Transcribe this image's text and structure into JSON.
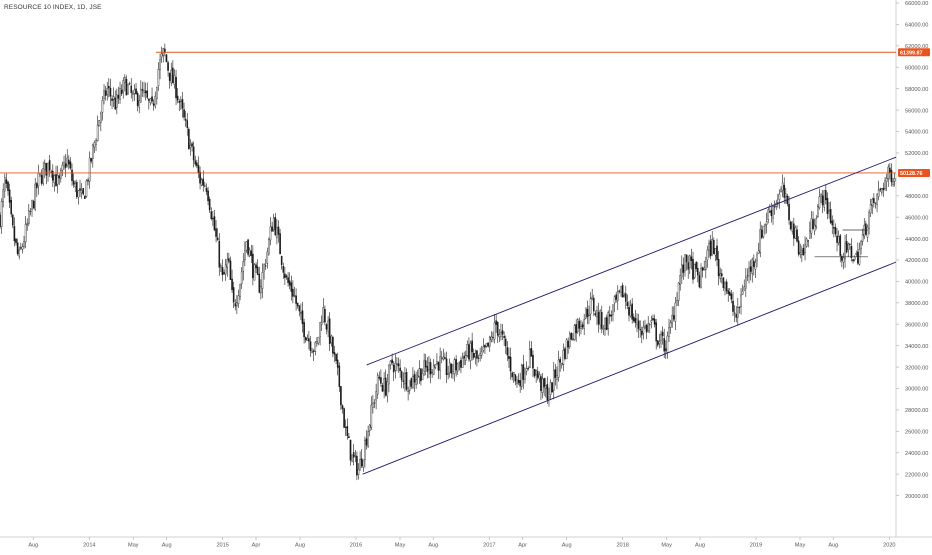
{
  "header": {
    "symbol_title": "RESOURCE 10 INDEX, 1D, JSE"
  },
  "colors": {
    "candle": "#1a1a1a",
    "resistance": "#e9541e",
    "channel": "#1f1a6b",
    "axis_text": "#555555",
    "price_label_bg": "#e9541e",
    "price_label_text": "#ffffff"
  },
  "chart_data": {
    "type": "candlestick",
    "title": "RESOURCE 10 INDEX, 1D, JSE",
    "xlabel": "",
    "ylabel": "",
    "ylim": [
      18000,
      66000
    ],
    "grid": false,
    "price_axis_position": "right",
    "y_ticks": [
      "66000.00",
      "64000.00",
      "62000.00",
      "60000.00",
      "58000.00",
      "56000.00",
      "54000.00",
      "52000.00",
      "48000.00",
      "46000.00",
      "44000.00",
      "42000.00",
      "40000.00",
      "38000.00",
      "36000.00",
      "34000.00",
      "32000.00",
      "30000.00",
      "28000.00",
      "26000.00",
      "24000.00",
      "22000.00",
      "20000.00"
    ],
    "x_ticks": [
      {
        "label": "Aug",
        "t": 2013.58
      },
      {
        "label": "2014",
        "t": 2014.0
      },
      {
        "label": "May",
        "t": 2014.33
      },
      {
        "label": "Aug",
        "t": 2014.58
      },
      {
        "label": "2015",
        "t": 2015.0
      },
      {
        "label": "Apr",
        "t": 2015.25
      },
      {
        "label": "Aug",
        "t": 2015.58
      },
      {
        "label": "2016",
        "t": 2016.0
      },
      {
        "label": "May",
        "t": 2016.33
      },
      {
        "label": "Aug",
        "t": 2016.58
      },
      {
        "label": "2017",
        "t": 2017.0
      },
      {
        "label": "Apr",
        "t": 2017.25
      },
      {
        "label": "Aug",
        "t": 2017.58
      },
      {
        "label": "2018",
        "t": 2018.0
      },
      {
        "label": "May",
        "t": 2018.33
      },
      {
        "label": "Aug",
        "t": 2018.58
      },
      {
        "label": "2019",
        "t": 2019.0
      },
      {
        "label": "May",
        "t": 2019.33
      },
      {
        "label": "Aug",
        "t": 2019.58
      },
      {
        "label": "2020",
        "t": 2020.0
      }
    ],
    "x_range": [
      2013.33,
      2020.05
    ],
    "price_path": [
      [
        2013.33,
        46000
      ],
      [
        2013.37,
        49500
      ],
      [
        2013.42,
        45000
      ],
      [
        2013.47,
        42000
      ],
      [
        2013.55,
        46000
      ],
      [
        2013.62,
        49500
      ],
      [
        2013.7,
        51000
      ],
      [
        2013.77,
        49000
      ],
      [
        2013.83,
        51500
      ],
      [
        2013.88,
        49000
      ],
      [
        2013.95,
        47500
      ],
      [
        2014.0,
        50500
      ],
      [
        2014.07,
        55000
      ],
      [
        2014.13,
        58000
      ],
      [
        2014.2,
        56500
      ],
      [
        2014.27,
        58500
      ],
      [
        2014.33,
        57000
      ],
      [
        2014.4,
        57500
      ],
      [
        2014.47,
        56000
      ],
      [
        2014.52,
        60000
      ],
      [
        2014.56,
        61400
      ],
      [
        2014.6,
        59500
      ],
      [
        2014.65,
        58000
      ],
      [
        2014.72,
        54500
      ],
      [
        2014.78,
        51500
      ],
      [
        2014.83,
        49500
      ],
      [
        2014.88,
        49000
      ],
      [
        2014.95,
        44000
      ],
      [
        2015.0,
        40000
      ],
      [
        2015.04,
        42000
      ],
      [
        2015.08,
        37500
      ],
      [
        2015.13,
        40000
      ],
      [
        2015.18,
        44000
      ],
      [
        2015.23,
        41000
      ],
      [
        2015.28,
        39500
      ],
      [
        2015.33,
        42500
      ],
      [
        2015.38,
        46000
      ],
      [
        2015.43,
        43000
      ],
      [
        2015.48,
        40000
      ],
      [
        2015.53,
        39000
      ],
      [
        2015.58,
        36500
      ],
      [
        2015.65,
        34500
      ],
      [
        2015.7,
        33500
      ],
      [
        2015.75,
        37500
      ],
      [
        2015.8,
        35000
      ],
      [
        2015.85,
        32000
      ],
      [
        2015.88,
        30000
      ],
      [
        2015.92,
        26000
      ],
      [
        2015.97,
        23500
      ],
      [
        2016.02,
        22400
      ],
      [
        2016.07,
        25000
      ],
      [
        2016.12,
        28000
      ],
      [
        2016.17,
        31000
      ],
      [
        2016.22,
        30000
      ],
      [
        2016.27,
        32500
      ],
      [
        2016.33,
        31500
      ],
      [
        2016.4,
        30500
      ],
      [
        2016.47,
        31500
      ],
      [
        2016.55,
        32000
      ],
      [
        2016.62,
        32500
      ],
      [
        2016.7,
        31500
      ],
      [
        2016.78,
        32500
      ],
      [
        2016.85,
        33500
      ],
      [
        2016.92,
        32500
      ],
      [
        2017.0,
        34000
      ],
      [
        2017.05,
        36000
      ],
      [
        2017.1,
        34500
      ],
      [
        2017.15,
        32500
      ],
      [
        2017.2,
        30500
      ],
      [
        2017.25,
        31500
      ],
      [
        2017.3,
        33000
      ],
      [
        2017.35,
        31500
      ],
      [
        2017.4,
        30000
      ],
      [
        2017.45,
        29500
      ],
      [
        2017.5,
        31500
      ],
      [
        2017.58,
        34000
      ],
      [
        2017.63,
        35500
      ],
      [
        2017.7,
        36500
      ],
      [
        2017.77,
        38000
      ],
      [
        2017.82,
        36500
      ],
      [
        2017.87,
        36000
      ],
      [
        2017.93,
        37500
      ],
      [
        2018.0,
        39000
      ],
      [
        2018.05,
        37500
      ],
      [
        2018.1,
        36000
      ],
      [
        2018.15,
        35500
      ],
      [
        2018.22,
        36000
      ],
      [
        2018.27,
        34500
      ],
      [
        2018.33,
        34000
      ],
      [
        2018.38,
        37000
      ],
      [
        2018.43,
        40500
      ],
      [
        2018.48,
        42000
      ],
      [
        2018.53,
        41000
      ],
      [
        2018.58,
        40000
      ],
      [
        2018.63,
        42500
      ],
      [
        2018.68,
        43500
      ],
      [
        2018.72,
        41000
      ],
      [
        2018.77,
        40000
      ],
      [
        2018.82,
        37500
      ],
      [
        2018.86,
        36500
      ],
      [
        2018.9,
        39500
      ],
      [
        2018.95,
        41000
      ],
      [
        2019.0,
        42500
      ],
      [
        2019.05,
        45000
      ],
      [
        2019.1,
        46500
      ],
      [
        2019.15,
        47500
      ],
      [
        2019.2,
        48500
      ],
      [
        2019.25,
        46000
      ],
      [
        2019.3,
        44000
      ],
      [
        2019.35,
        42500
      ],
      [
        2019.4,
        44500
      ],
      [
        2019.45,
        46500
      ],
      [
        2019.5,
        48000
      ],
      [
        2019.55,
        46500
      ],
      [
        2019.6,
        44000
      ],
      [
        2019.65,
        42500
      ],
      [
        2019.7,
        43000
      ],
      [
        2019.75,
        42000
      ],
      [
        2019.8,
        44000
      ],
      [
        2019.85,
        46500
      ],
      [
        2019.9,
        47500
      ],
      [
        2019.95,
        49000
      ],
      [
        2020.0,
        50000
      ],
      [
        2020.04,
        50100
      ]
    ],
    "resistance_levels": [
      {
        "price": 61399.87,
        "label": "61399.87",
        "t_start": 2014.5
      },
      {
        "price": 50128.76,
        "label": "50128.76",
        "t_start": 2013.33
      }
    ],
    "channel": {
      "upper": [
        [
          2016.08,
          32200
        ],
        [
          2020.05,
          51600
        ]
      ],
      "lower": [
        [
          2016.05,
          22000
        ],
        [
          2020.05,
          41800
        ]
      ]
    },
    "consolidation_box": {
      "top": [
        [
          2019.65,
          44800
        ],
        [
          2019.84,
          44800
        ]
      ],
      "bottom": [
        [
          2019.44,
          42300
        ],
        [
          2019.84,
          42300
        ]
      ]
    }
  }
}
